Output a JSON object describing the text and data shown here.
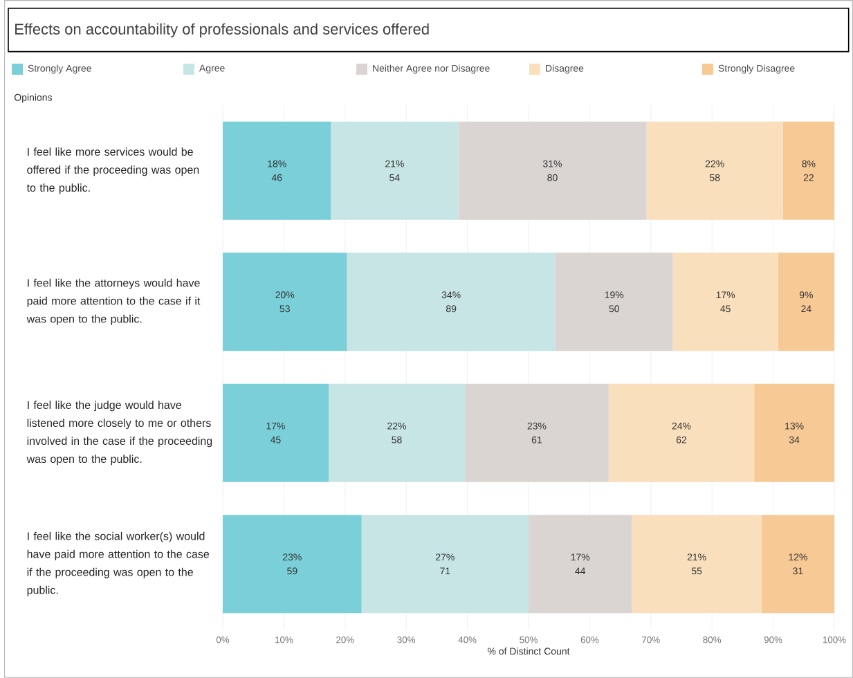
{
  "chart_data": {
    "type": "bar",
    "orientation": "horizontal",
    "stacked": true,
    "title": "Effects on accountability of professionals and services offered",
    "ylabel": "Opinions",
    "xlabel": "% of Distinct Count",
    "categories": [
      "I feel like more services would be offered if the proceeding was open to the public.",
      "I feel like the attorneys would have paid more attention to the case if it was open to the public.",
      "I feel like the judge would have listened more closely to me or others involved in the case if the proceeding was open to the public.",
      "I feel like the social worker(s) would have paid more attention to the case if the proceeding was open to the public."
    ],
    "series": [
      {
        "name": "Strongly Agree",
        "color": "#7acfd8",
        "values": [
          17.7,
          20.3,
          17.3,
          22.7
        ],
        "value_labels": [
          "18% 46",
          "20% 53",
          "17% 45",
          "23% 59"
        ]
      },
      {
        "name": "Agree",
        "color": "#c6e5e4",
        "values": [
          20.8,
          34.1,
          22.3,
          27.3
        ],
        "value_labels": [
          "21% 54",
          "34% 89",
          "22% 58",
          "27% 71"
        ]
      },
      {
        "name": "Neither Agree nor Disagree",
        "color": "#dad4d2",
        "values": [
          30.8,
          19.2,
          23.5,
          16.9
        ],
        "value_labels": [
          "31% 80",
          "19% 50",
          "23% 61",
          "17% 44"
        ]
      },
      {
        "name": "Disagree",
        "color": "#f9dfbc",
        "values": [
          22.3,
          17.2,
          23.8,
          21.2
        ],
        "value_labels": [
          "22% 58",
          "17% 45",
          "24% 62",
          "21% 55"
        ]
      },
      {
        "name": "Strongly Disagree",
        "color": "#f7c995",
        "values": [
          8.4,
          9.2,
          13.1,
          11.9
        ],
        "value_labels": [
          "8% 22",
          "9% 24",
          "13% 34",
          "12% 31"
        ]
      }
    ],
    "xlim": [
      0,
      100
    ],
    "xticks": [
      {
        "value": 0,
        "label": "0%"
      },
      {
        "value": 10,
        "label": "10%"
      },
      {
        "value": 20,
        "label": "20%"
      },
      {
        "value": 30,
        "label": "30%"
      },
      {
        "value": 40,
        "label": "40%"
      },
      {
        "value": 50,
        "label": "50%"
      },
      {
        "value": 60,
        "label": "60%"
      },
      {
        "value": 70,
        "label": "70%"
      },
      {
        "value": 80,
        "label": "80%"
      },
      {
        "value": 90,
        "label": "90%"
      },
      {
        "value": 100,
        "label": "100%"
      }
    ],
    "grid": "x",
    "legend": "top"
  }
}
